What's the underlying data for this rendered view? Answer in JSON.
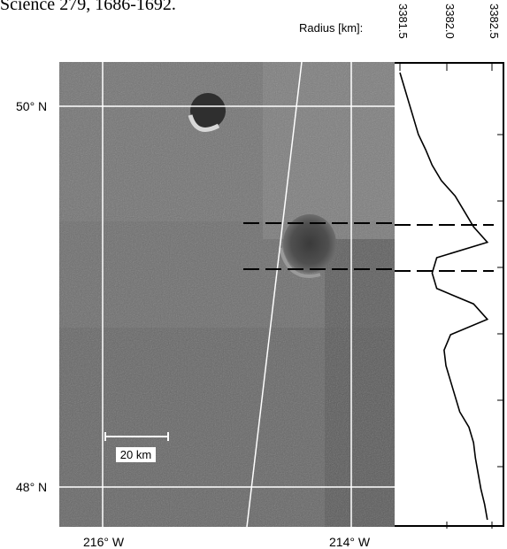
{
  "header": {
    "citation": "Science 279, 1686-1692."
  },
  "radius_axis": {
    "label": "Radius [km]:",
    "ticks": [
      "3381.5",
      "3382.0",
      "3382.5"
    ]
  },
  "latitude": {
    "north": "50° N",
    "south": "48° N"
  },
  "longitude": {
    "west": "216° W",
    "east": "214° W"
  },
  "scale_bar": {
    "label": "20 km"
  },
  "colors": {
    "image_gray": "#6d6d6d",
    "grid_line": "#ffffff",
    "profile_line": "#000000"
  },
  "chart_data": {
    "type": "line",
    "xlabel": "Radius [km]",
    "xlim": [
      3381.5,
      3382.5
    ],
    "x_ticks": [
      "3381.5",
      "3382.0",
      "3382.5"
    ],
    "y_range_deg_N": [
      48,
      50
    ],
    "profile_radius_km": [
      3381.5,
      3381.55,
      3381.6,
      3381.65,
      3381.7,
      3381.78,
      3381.85,
      3381.95,
      3382.1,
      3382.2,
      3382.3,
      3382.45,
      3381.9,
      3381.85,
      3381.9,
      3382.3,
      3382.45,
      3382.05,
      3381.98,
      3382.0,
      3382.05,
      3382.1,
      3382.15,
      3382.25,
      3382.3,
      3382.32,
      3382.35,
      3382.38,
      3382.42,
      3382.45
    ]
  }
}
